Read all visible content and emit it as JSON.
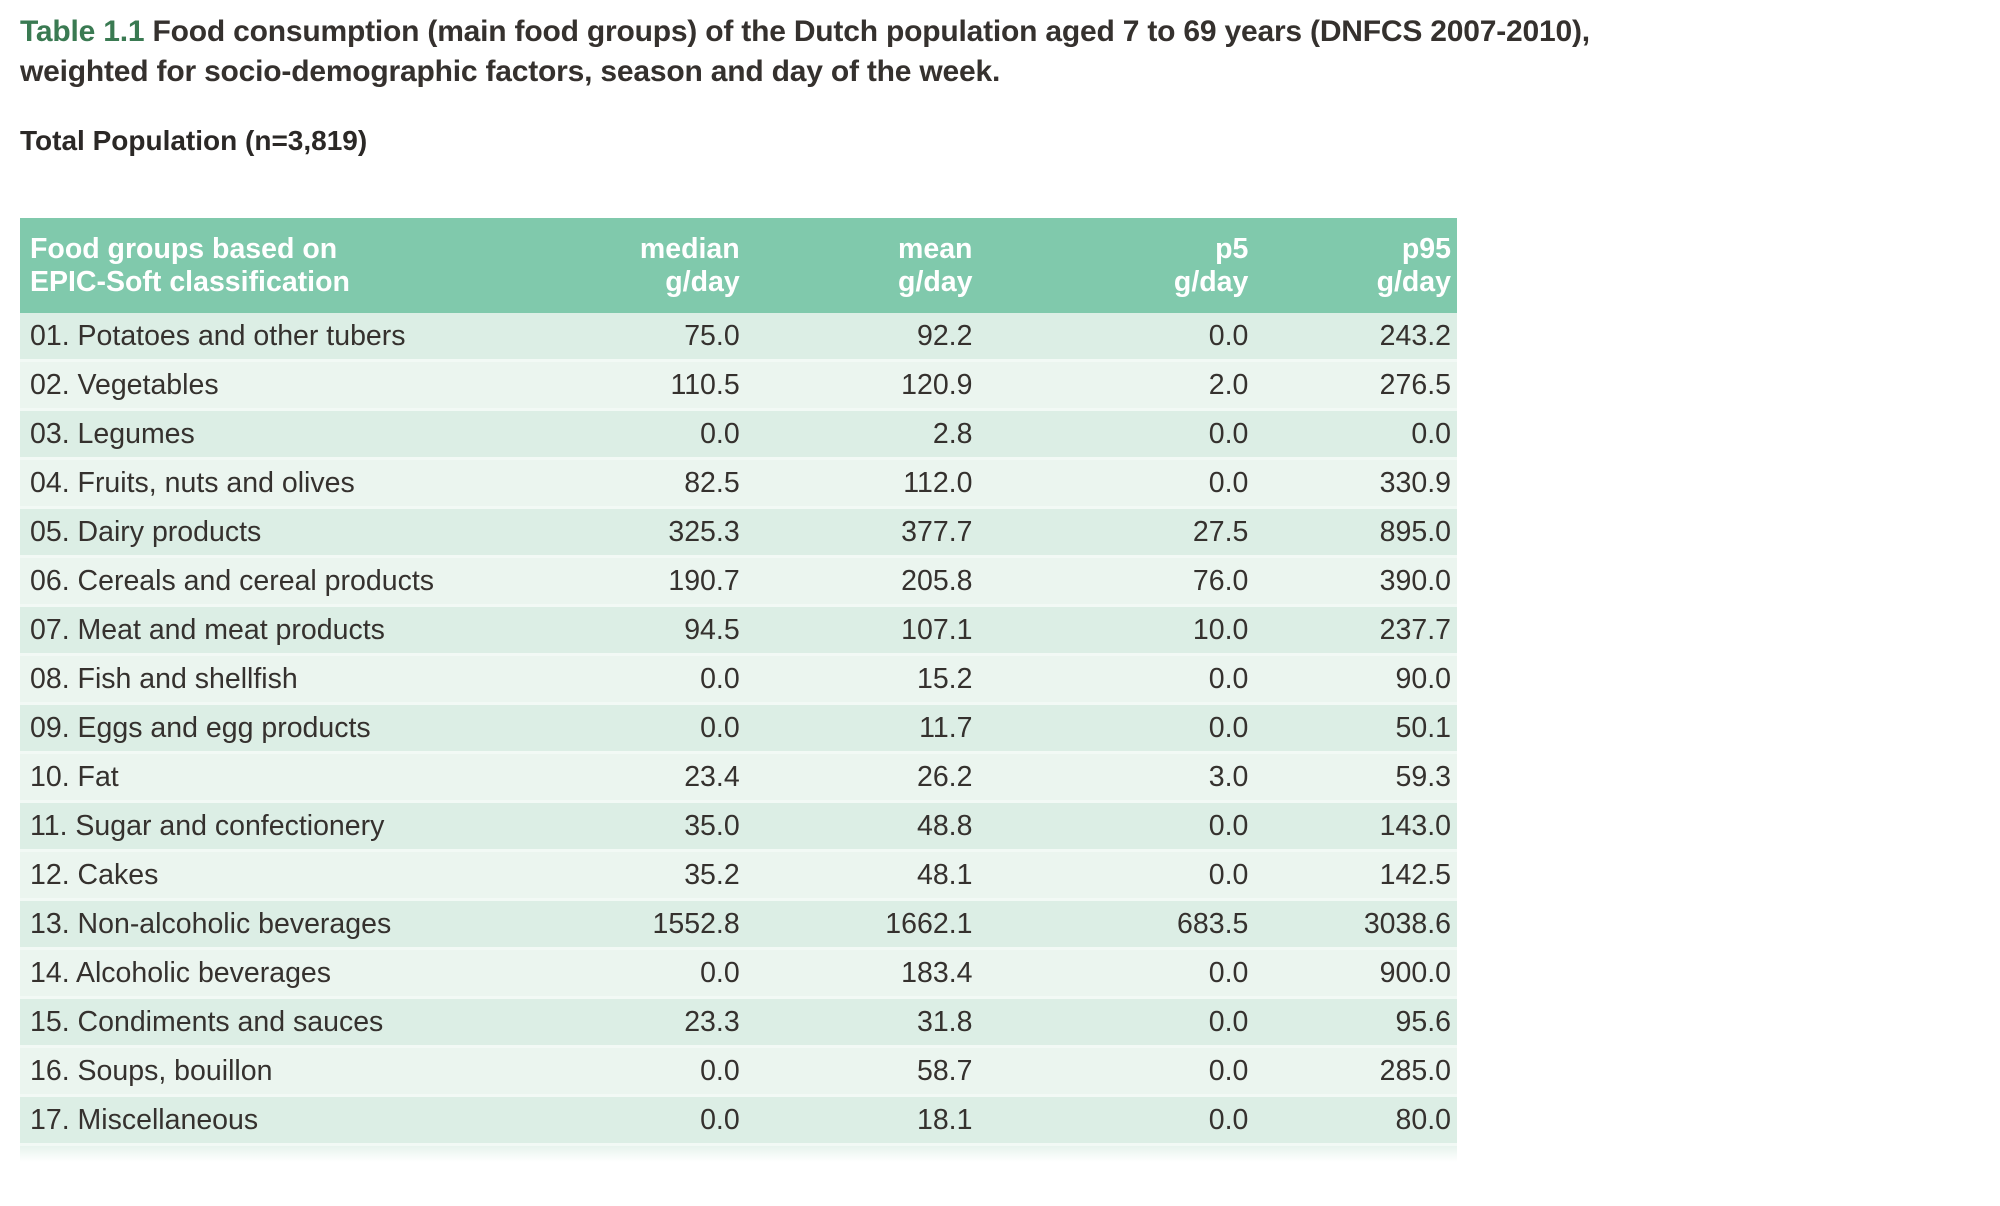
{
  "page": {
    "caption": {
      "prefix": "Table 1.1",
      "line1_rest": "Food consumption (main food groups) of the  Dutch population aged 7 to 69 years (DNFCS 2007-2010),",
      "line2": "weighted for socio-demographic factors, season and day of the week."
    },
    "subtitle": "Total Population (n=3,819)"
  },
  "table": {
    "header": {
      "col1_line1": "Food groups based on",
      "col1_line2": "EPIC-Soft classification",
      "columns": [
        {
          "label": "median",
          "unit": "g/day"
        },
        {
          "label": "mean",
          "unit": "g/day"
        },
        {
          "label": "p5",
          "unit": "g/day"
        },
        {
          "label": "p95",
          "unit": "g/day"
        }
      ]
    },
    "rows": [
      {
        "group": "01. Potatoes and other tubers",
        "median": "75.0",
        "mean": "92.2",
        "p5": "0.0",
        "p95": "243.2"
      },
      {
        "group": "02. Vegetables",
        "median": "110.5",
        "mean": "120.9",
        "p5": "2.0",
        "p95": "276.5"
      },
      {
        "group": "03. Legumes",
        "median": "0.0",
        "mean": "2.8",
        "p5": "0.0",
        "p95": "0.0"
      },
      {
        "group": "04. Fruits, nuts and olives",
        "median": "82.5",
        "mean": "112.0",
        "p5": "0.0",
        "p95": "330.9"
      },
      {
        "group": "05. Dairy products",
        "median": "325.3",
        "mean": "377.7",
        "p5": "27.5",
        "p95": "895.0"
      },
      {
        "group": "06. Cereals and cereal products",
        "median": "190.7",
        "mean": "205.8",
        "p5": "76.0",
        "p95": "390.0"
      },
      {
        "group": "07. Meat and meat products",
        "median": "94.5",
        "mean": "107.1",
        "p5": "10.0",
        "p95": "237.7"
      },
      {
        "group": "08. Fish and shellfish",
        "median": "0.0",
        "mean": "15.2",
        "p5": "0.0",
        "p95": "90.0"
      },
      {
        "group": "09. Eggs and egg products",
        "median": "0.0",
        "mean": "11.7",
        "p5": "0.0",
        "p95": "50.1"
      },
      {
        "group": "10. Fat",
        "median": "23.4",
        "mean": "26.2",
        "p5": "3.0",
        "p95": "59.3"
      },
      {
        "group": "11. Sugar and confectionery",
        "median": "35.0",
        "mean": "48.8",
        "p5": "0.0",
        "p95": "143.0"
      },
      {
        "group": "12. Cakes",
        "median": "35.2",
        "mean": "48.1",
        "p5": "0.0",
        "p95": "142.5"
      },
      {
        "group": "13. Non-alcoholic beverages",
        "median": "1552.8",
        "mean": "1662.1",
        "p5": "683.5",
        "p95": "3038.6"
      },
      {
        "group": "14. Alcoholic beverages",
        "median": "0.0",
        "mean": "183.4",
        "p5": "0.0",
        "p95": "900.0"
      },
      {
        "group": "15. Condiments and sauces",
        "median": "23.3",
        "mean": "31.8",
        "p5": "0.0",
        "p95": "95.6"
      },
      {
        "group": "16. Soups, bouillon",
        "median": "0.0",
        "mean": "58.7",
        "p5": "0.0",
        "p95": "285.0"
      },
      {
        "group": "17. Miscellaneous",
        "median": "0.0",
        "mean": "18.1",
        "p5": "0.0",
        "p95": "80.0"
      }
    ]
  },
  "colors": {
    "accent_green": "#3a7a52",
    "header_bg": "#80c9ac",
    "row_odd": "#dceee5",
    "row_even": "#ebf5ef"
  }
}
